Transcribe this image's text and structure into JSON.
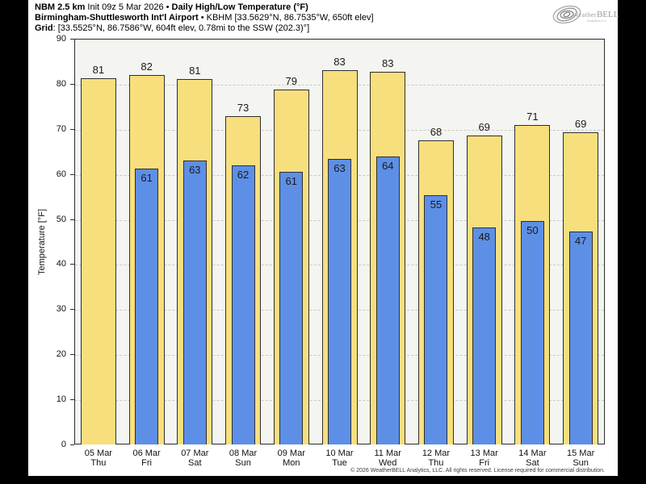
{
  "header": {
    "model": "NBM 2.5 km",
    "init": " Init 09z 5 Mar 2026 ",
    "bullet1": "•",
    "title": " Daily High/Low Temperature (°F)",
    "station_name": "Birmingham-Shuttlesworth Int'l Airport",
    "station_info": " • KBHM [33.5629°N, 86.7535°W, 650ft elev]",
    "grid_label": "Grid",
    "grid_info": ": [33.5525°N, 86.7586°W, 604ft elev, 0.78mi to the SSW (202.3)°]"
  },
  "logo": {
    "text_weather": "Weather",
    "text_bell": "BELL",
    "subtext": "Analytics LLC"
  },
  "chart_data": {
    "type": "bar",
    "title": "Daily High/Low Temperature (°F)",
    "xlabel": "",
    "ylabel": "Temperature [°F]",
    "ylim": [
      0,
      90
    ],
    "yticks": [
      0,
      10,
      20,
      30,
      40,
      50,
      60,
      70,
      80,
      90
    ],
    "grid": "horizontal-dashed",
    "legend": "none",
    "categories": [
      {
        "date": "05 Mar",
        "day": "Thu"
      },
      {
        "date": "06 Mar",
        "day": "Fri"
      },
      {
        "date": "07 Mar",
        "day": "Sat"
      },
      {
        "date": "08 Mar",
        "day": "Sun"
      },
      {
        "date": "09 Mar",
        "day": "Mon"
      },
      {
        "date": "10 Mar",
        "day": "Tue"
      },
      {
        "date": "11 Mar",
        "day": "Wed"
      },
      {
        "date": "12 Mar",
        "day": "Thu"
      },
      {
        "date": "13 Mar",
        "day": "Fri"
      },
      {
        "date": "14 Mar",
        "day": "Sat"
      },
      {
        "date": "15 Mar",
        "day": "Sun"
      }
    ],
    "series": [
      {
        "name": "High",
        "color": "#f7df7d",
        "values": [
          81,
          82,
          81,
          73,
          79,
          83,
          83,
          68,
          69,
          71,
          69
        ],
        "bar_values": [
          81.3,
          82.0,
          81.1,
          72.9,
          78.8,
          83.0,
          82.7,
          67.5,
          68.6,
          70.8,
          69.3
        ]
      },
      {
        "name": "Low",
        "color": "#5e8fe6",
        "values": [
          null,
          61,
          63,
          62,
          61,
          63,
          64,
          55,
          48,
          50,
          47
        ],
        "bar_values": [
          null,
          61.2,
          63.0,
          61.9,
          60.5,
          63.3,
          63.9,
          55.2,
          48.2,
          49.6,
          47.2
        ]
      }
    ]
  },
  "footer": {
    "copyright": "© 2026 WeatherBELL Analytics, LLC. All rights reserved. License required for commercial distribution."
  }
}
